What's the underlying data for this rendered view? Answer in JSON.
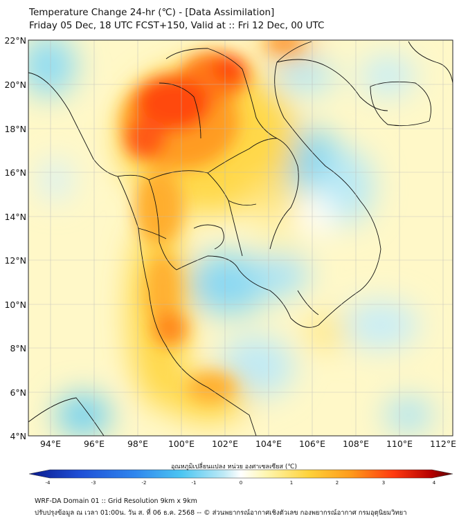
{
  "title_line1": "Temperature Change 24-hr (℃) - [Data Assimilation]",
  "title_line2": "Friday 05 Dec, 18 UTC FCST+150, Valid at :: Fri 12 Dec, 00 UTC",
  "lat_labels": [
    "22°N",
    "20°N",
    "18°N",
    "16°N",
    "14°N",
    "12°N",
    "10°N",
    "8°N",
    "6°N",
    "4°N"
  ],
  "lon_labels": [
    "94°E",
    "96°E",
    "98°E",
    "100°E",
    "102°E",
    "104°E",
    "106°E",
    "108°E",
    "110°E",
    "112°E"
  ],
  "colorbar": {
    "title": "อุณหภูมิเปลี่ยนแปลง หน่วย องศาเซลเซียส (℃)",
    "ticks": [
      "-4",
      "-3",
      "-2",
      "-1",
      "0",
      "1",
      "2",
      "3",
      "4"
    ],
    "colors": [
      "#0a1a8c",
      "#1f4fd6",
      "#2f86ee",
      "#4cc6f2",
      "#a8e6f5",
      "#ffffff",
      "#fff6b0",
      "#ffd23a",
      "#ff9a1a",
      "#ff3a10",
      "#b40000",
      "#5a0000"
    ]
  },
  "footer_line1": "WRF-DA Domain 01 :: Grid Resolution 9km x 9km",
  "footer_line2": "ปรับปรุงข้อมูล ณ เวลา 01:00น. วัน ส. ที่ 06 ธ.ค. 2568 -- © ส่วนพยากรณ์อากาศเชิงตัวเลข กองพยากรณ์อากาศ กรมอุตุนิยมวิทยา"
}
